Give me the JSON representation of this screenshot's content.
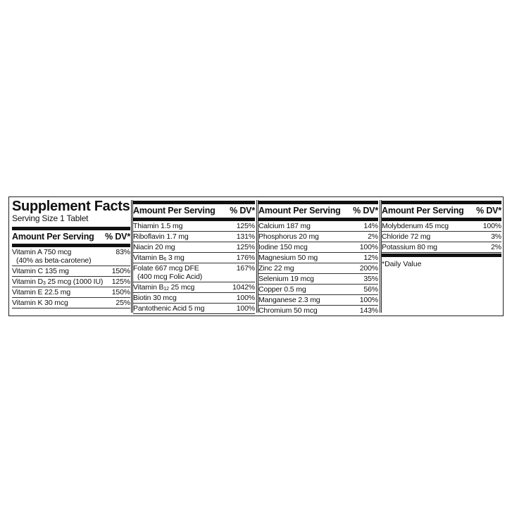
{
  "title": "Supplement Facts",
  "serving_size": "Serving Size 1 Tablet",
  "header": {
    "amount": "Amount Per Serving",
    "dv": "% DV*"
  },
  "columns": [
    [
      {
        "name": "Vitamin A 750 mcg",
        "sub": "",
        "rest": "",
        "note": "(40% as beta-carotene)",
        "dv": "83%"
      },
      {
        "name": "Vitamin C 135 mg",
        "sub": "",
        "rest": "",
        "note": "",
        "dv": "150%"
      },
      {
        "name": "Vitamin D",
        "sub": "3",
        "rest": " 25 mcg (1000 IU)",
        "note": "",
        "dv": "125%"
      },
      {
        "name": "Vitamin E 22.5 mg",
        "sub": "",
        "rest": "",
        "note": "",
        "dv": "150%"
      },
      {
        "name": "Vitamin K 30 mcg",
        "sub": "",
        "rest": "",
        "note": "",
        "dv": "25%"
      }
    ],
    [
      {
        "name": "Thiamin 1.5 mg",
        "sub": "",
        "rest": "",
        "note": "",
        "dv": "125%"
      },
      {
        "name": "Riboflavin 1.7 mg",
        "sub": "",
        "rest": "",
        "note": "",
        "dv": "131%"
      },
      {
        "name": "Niacin 20 mg",
        "sub": "",
        "rest": "",
        "note": "",
        "dv": "125%"
      },
      {
        "name": "Vitamin B",
        "sub": "6",
        "rest": " 3 mg",
        "note": "",
        "dv": "176%"
      },
      {
        "name": "Folate 667 mcg DFE",
        "sub": "",
        "rest": "",
        "note": "(400 mcg Folic Acid)",
        "dv": "167%"
      },
      {
        "name": "Vitamin B",
        "sub": "12",
        "rest": " 25 mcg",
        "note": "",
        "dv": "1042%"
      },
      {
        "name": "Biotin 30 mcg",
        "sub": "",
        "rest": "",
        "note": "",
        "dv": "100%"
      },
      {
        "name": "Pantothenic Acid 5 mg",
        "sub": "",
        "rest": "",
        "note": "",
        "dv": "100%"
      }
    ],
    [
      {
        "name": "Calcium 187 mg",
        "sub": "",
        "rest": "",
        "note": "",
        "dv": "14%"
      },
      {
        "name": "Phosphorus 20 mg",
        "sub": "",
        "rest": "",
        "note": "",
        "dv": "2%"
      },
      {
        "name": "Iodine 150 mcg",
        "sub": "",
        "rest": "",
        "note": "",
        "dv": "100%"
      },
      {
        "name": "Magnesium 50 mg",
        "sub": "",
        "rest": "",
        "note": "",
        "dv": "12%"
      },
      {
        "name": "Zinc 22 mg",
        "sub": "",
        "rest": "",
        "note": "",
        "dv": "200%"
      },
      {
        "name": "Selenium 19 mcg",
        "sub": "",
        "rest": "",
        "note": "",
        "dv": "35%"
      },
      {
        "name": "Copper 0.5 mg",
        "sub": "",
        "rest": "",
        "note": "",
        "dv": "56%"
      },
      {
        "name": "Manganese 2.3 mg",
        "sub": "",
        "rest": "",
        "note": "",
        "dv": "100%"
      },
      {
        "name": "Chromium 50 mcg",
        "sub": "",
        "rest": "",
        "note": "",
        "dv": "143%"
      }
    ],
    [
      {
        "name": "Molybdenum 45 mcg",
        "sub": "",
        "rest": "",
        "note": "",
        "dv": "100%"
      },
      {
        "name": "Chloride 72 mg",
        "sub": "",
        "rest": "",
        "note": "",
        "dv": "3%"
      },
      {
        "name": "Potassium 80 mg",
        "sub": "",
        "rest": "",
        "note": "",
        "dv": "2%"
      }
    ]
  ],
  "footnote": "*Daily Value"
}
